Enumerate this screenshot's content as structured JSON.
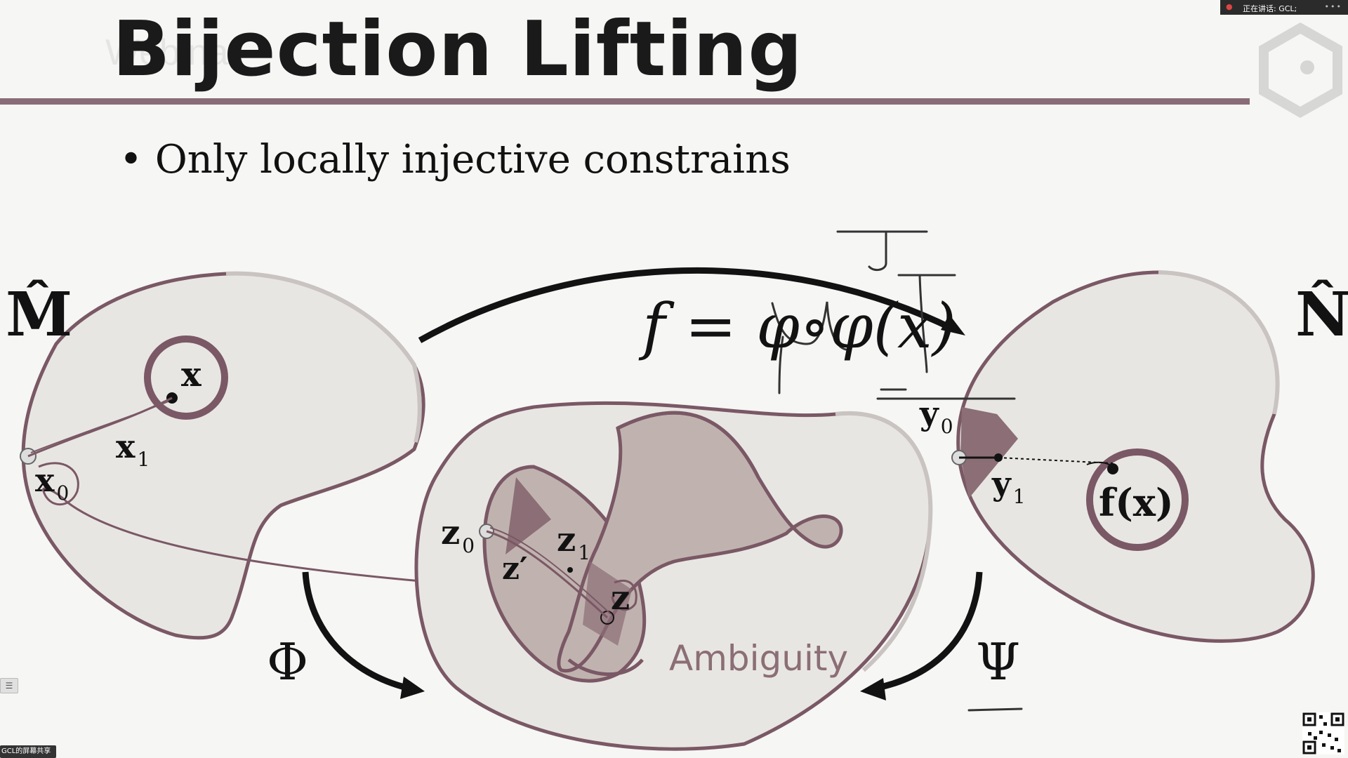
{
  "slide": {
    "title": "Bijection Lifting",
    "title_ghost": "Webinar",
    "bullet": "Only locally injective constrains"
  },
  "diagram": {
    "M_hat": "M̂",
    "N_hat": "N̂",
    "x": "x",
    "x1_base": "x",
    "x1_sub": "1",
    "x0_base": "x",
    "x0_sub": "0",
    "z0_base": "z",
    "z0_sub": "0",
    "z1_base": "z",
    "z1_sub": "1",
    "z_prime": "z′",
    "z": "z",
    "y0_base": "y",
    "y0_sub": "0",
    "y1_base": "y",
    "y1_sub": "1",
    "fx": "f(x)",
    "phi": "Φ",
    "psi": "Ψ",
    "ambiguity": "Ambiguity"
  },
  "annotation": {
    "formula": "f = φ∘φ(x)"
  },
  "meeting": {
    "speaking": "正在讲话: GCL;",
    "share_label": "GCL的屏幕共享",
    "rec_icon": "●",
    "menu_icon": "☰",
    "dots": "•••"
  },
  "colors": {
    "rule": "#8a6c78",
    "outline": "#7a5865",
    "fill_light": "#e8e6e3",
    "fill_mid": "#c0b3af",
    "fill_dark": "#8b6e76",
    "ink": "#121212"
  }
}
